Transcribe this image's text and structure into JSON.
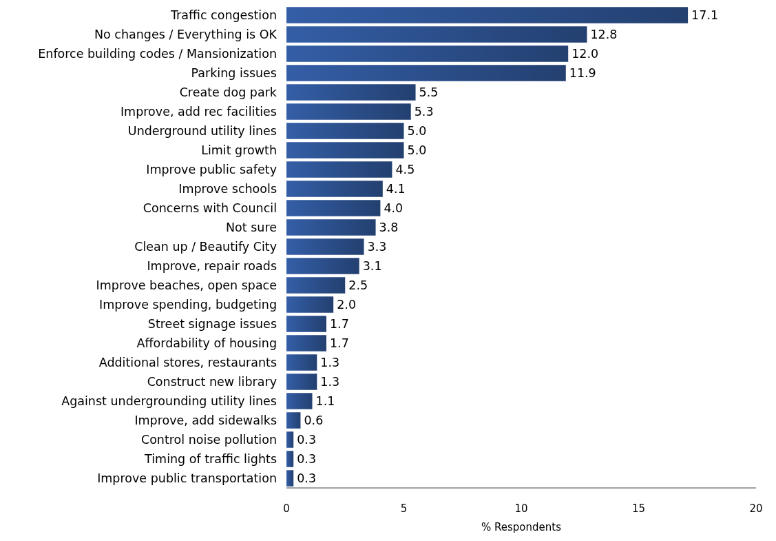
{
  "chart_data": {
    "type": "bar",
    "orientation": "horizontal",
    "xlabel": "% Respondents",
    "categories": [
      "Traffic congestion",
      "No changes / Everything is OK",
      "Enforce building codes / Mansionization",
      "Parking issues",
      "Create dog park",
      "Improve, add rec facilities",
      "Underground utility lines",
      "Limit growth",
      "Improve public safety",
      "Improve schools",
      "Concerns with Council",
      "Not sure",
      "Clean up / Beautify City",
      "Improve, repair roads",
      "Improve beaches, open space",
      "Improve spending, budgeting",
      "Street signage issues",
      "Affordability of housing",
      "Additional stores, restaurants",
      "Construct new library",
      "Against undergrounding utility lines",
      "Improve, add sidewalks",
      "Control noise pollution",
      "Timing of traffic lights",
      "Improve public transportation"
    ],
    "values": [
      17.1,
      12.8,
      12.0,
      11.9,
      5.5,
      5.3,
      5.0,
      5.0,
      4.5,
      4.1,
      4.0,
      3.8,
      3.3,
      3.1,
      2.5,
      2.0,
      1.7,
      1.7,
      1.3,
      1.3,
      1.1,
      0.6,
      0.3,
      0.3,
      0.3
    ],
    "value_labels": [
      "17.1",
      "12.8",
      "12.0",
      "11.9",
      "5.5",
      "5.3",
      "5.0",
      "5.0",
      "4.5",
      "4.1",
      "4.0",
      "3.8",
      "3.3",
      "3.1",
      "2.5",
      "2.0",
      "1.7",
      "1.7",
      "1.3",
      "1.3",
      "1.1",
      "0.6",
      "0.3",
      "0.3",
      "0.3"
    ],
    "color": "#2a4c86",
    "xlim": [
      0,
      20
    ],
    "xticks": [
      0,
      5,
      10,
      15,
      20
    ],
    "grid": false
  }
}
